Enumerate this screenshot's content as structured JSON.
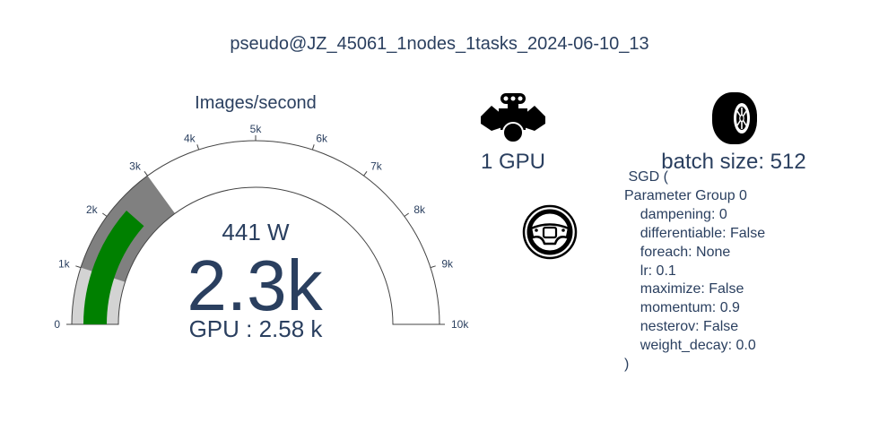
{
  "title": "pseudo@JZ_45061_1nodes_1tasks_2024-06-10_13",
  "chart_data": {
    "type": "gauge",
    "title": "Images/second",
    "value": 2300,
    "value_label": "2.3k",
    "range": [
      0,
      10000
    ],
    "ticks": [
      "0",
      "1k",
      "2k",
      "3k",
      "4k",
      "5k",
      "6k",
      "7k",
      "8k",
      "9k",
      "10k"
    ],
    "tick_values": [
      0,
      1000,
      2000,
      3000,
      4000,
      5000,
      6000,
      7000,
      8000,
      9000,
      10000
    ],
    "steps": [
      {
        "range": [
          0,
          1000
        ],
        "color": "#d3d3d3"
      },
      {
        "range": [
          1000,
          3000
        ],
        "color": "#808080"
      }
    ],
    "bar_color": "#008000",
    "power_label": "441 W",
    "reference_label": "GPU : 2.58 k"
  },
  "gpu": {
    "label": "1 GPU",
    "icon": "engine-icon"
  },
  "batch": {
    "label": "batch size: 512",
    "icon": "tire-icon"
  },
  "optimizer": {
    "icon": "steering-wheel-icon",
    "lines": [
      " SGD (",
      "Parameter Group 0",
      "    dampening: 0",
      "    differentiable: False",
      "    foreach: None",
      "    lr: 0.1",
      "    maximize: False",
      "    momentum: 0.9",
      "    nesterov: False",
      "    weight_decay: 0.0",
      ")"
    ]
  },
  "colors": {
    "text": "#2a3f5f",
    "bar": "#008000",
    "step_low": "#d3d3d3",
    "step_mid": "#808080"
  }
}
